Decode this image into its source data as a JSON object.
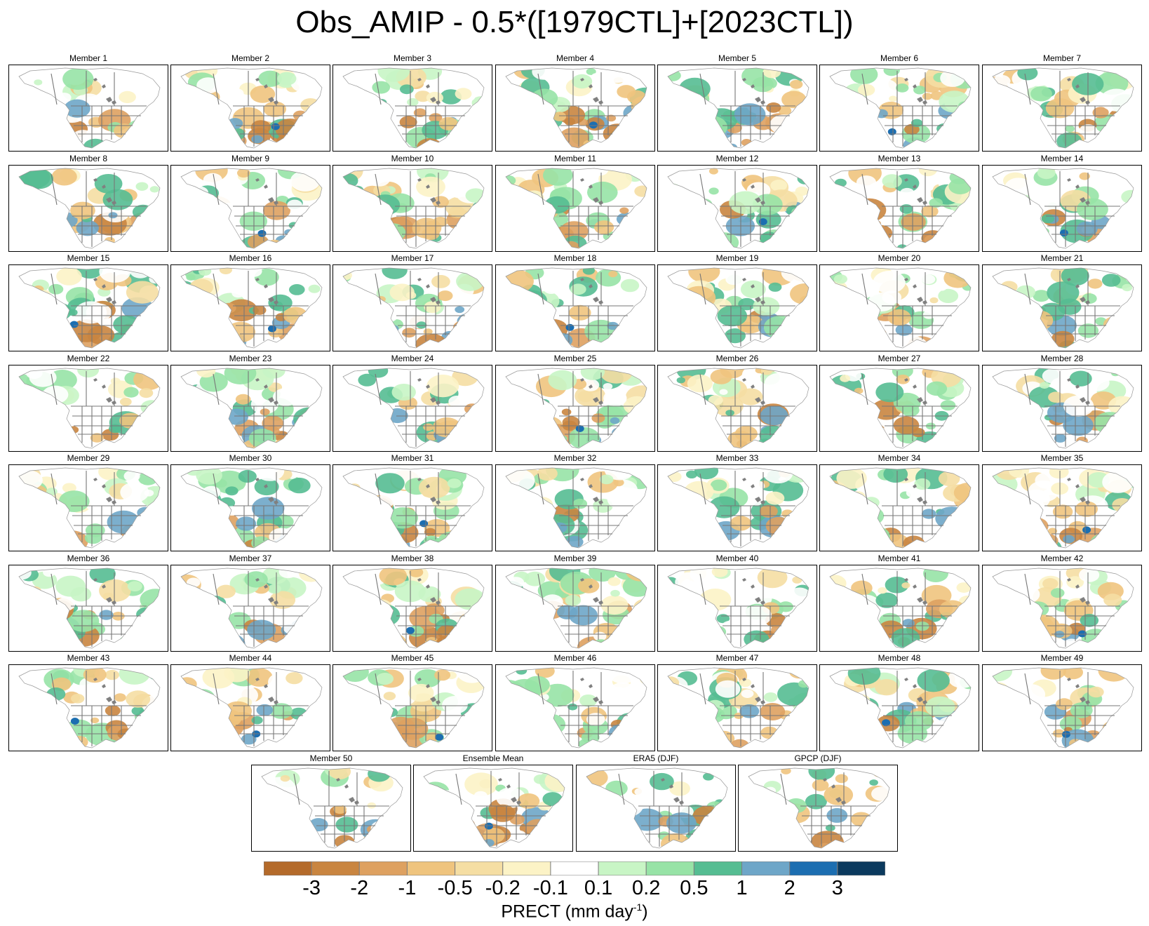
{
  "chart_data": {
    "type": "heatmap",
    "title": "Obs_AMIP - 0.5*([1979CTL]+[2023CTL])",
    "panels": [
      "Member 1",
      "Member 2",
      "Member 3",
      "Member 4",
      "Member 5",
      "Member 6",
      "Member 7",
      "Member 8",
      "Member 9",
      "Member 10",
      "Member 11",
      "Member 12",
      "Member 13",
      "Member 14",
      "Member 15",
      "Member 16",
      "Member 17",
      "Member 18",
      "Member 19",
      "Member 20",
      "Member 21",
      "Member 22",
      "Member 23",
      "Member 24",
      "Member 25",
      "Member 26",
      "Member 27",
      "Member 28",
      "Member 29",
      "Member 30",
      "Member 31",
      "Member 32",
      "Member 33",
      "Member 34",
      "Member 35",
      "Member 36",
      "Member 37",
      "Member 38",
      "Member 39",
      "Member 40",
      "Member 41",
      "Member 42",
      "Member 43",
      "Member 44",
      "Member 45",
      "Member 46",
      "Member 47",
      "Member 48",
      "Member 49",
      "Member 50",
      "Ensemble Mean",
      "ERA5 (DJF)",
      "GPCP (DJF)"
    ],
    "colorbar": {
      "label_main": "PRECT (mm day",
      "label_sup": "-1",
      "label_end": ")",
      "ticks": [
        "-3",
        "-2",
        "-1",
        "-0.5",
        "-0.2",
        "-0.1",
        "0.1",
        "0.2",
        "0.5",
        "1",
        "2",
        "3"
      ],
      "colors": [
        "#b46a2a",
        "#c98540",
        "#dea160",
        "#efc47e",
        "#f5dea3",
        "#fcf3c6",
        "#ffffff",
        "#c8f5c5",
        "#97e3a6",
        "#55bd92",
        "#6ea6c8",
        "#1c6eb1",
        "#0b3a5e"
      ]
    }
  }
}
